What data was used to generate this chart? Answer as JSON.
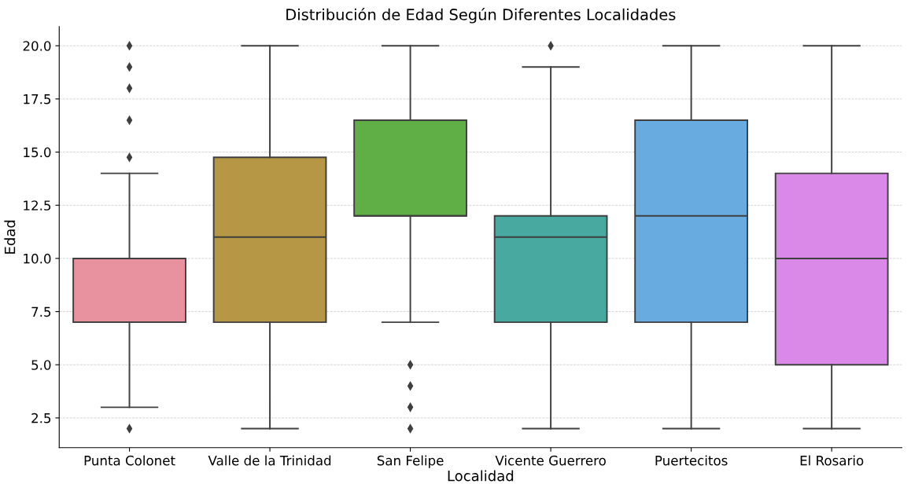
{
  "chart_data": {
    "type": "box",
    "title": "Distribución de Edad Según Diferentes Localidades",
    "xlabel": "Localidad",
    "ylabel": "Edad",
    "categories": [
      "Punta Colonet",
      "Valle de la Trinidad",
      "San Felipe",
      "Vicente Guerrero",
      "Puertecitos",
      "El Rosario"
    ],
    "boxes": [
      {
        "low": 3,
        "q1": 7,
        "median": 7,
        "q3": 10,
        "high": 14,
        "outliers": [
          2,
          14.75,
          16.5,
          18,
          19,
          20
        ]
      },
      {
        "low": 2,
        "q1": 7,
        "median": 11,
        "q3": 14.75,
        "high": 20
      },
      {
        "low": 7,
        "q1": 12,
        "median": 12,
        "q3": 16.5,
        "high": 20,
        "outliers": [
          2,
          3,
          4,
          5
        ]
      },
      {
        "low": 2,
        "q1": 7,
        "median": 11,
        "q3": 12,
        "high": 19,
        "outliers": [
          20
        ]
      },
      {
        "low": 2,
        "q1": 7,
        "median": 12,
        "q3": 16.5,
        "high": 20
      },
      {
        "low": 2,
        "q1": 5,
        "median": 10,
        "q3": 14,
        "high": 20
      }
    ],
    "colors": [
      "#e8929f",
      "#b59746",
      "#5fae46",
      "#47a9a0",
      "#68abe0",
      "#db89e8"
    ],
    "ylim": [
      1.1,
      20.9
    ],
    "yticks": [
      {
        "value": 2.5,
        "label": "2.5"
      },
      {
        "value": 5,
        "label": "5.0"
      },
      {
        "value": 7.5,
        "label": "7.5"
      },
      {
        "value": 10,
        "label": "10.0"
      },
      {
        "value": 12.5,
        "label": "12.5"
      },
      {
        "value": 15,
        "label": "15.0"
      },
      {
        "value": 17.5,
        "label": "17.5"
      },
      {
        "value": 20,
        "label": "20.0"
      }
    ],
    "grid": "y",
    "marker": "diamond"
  }
}
